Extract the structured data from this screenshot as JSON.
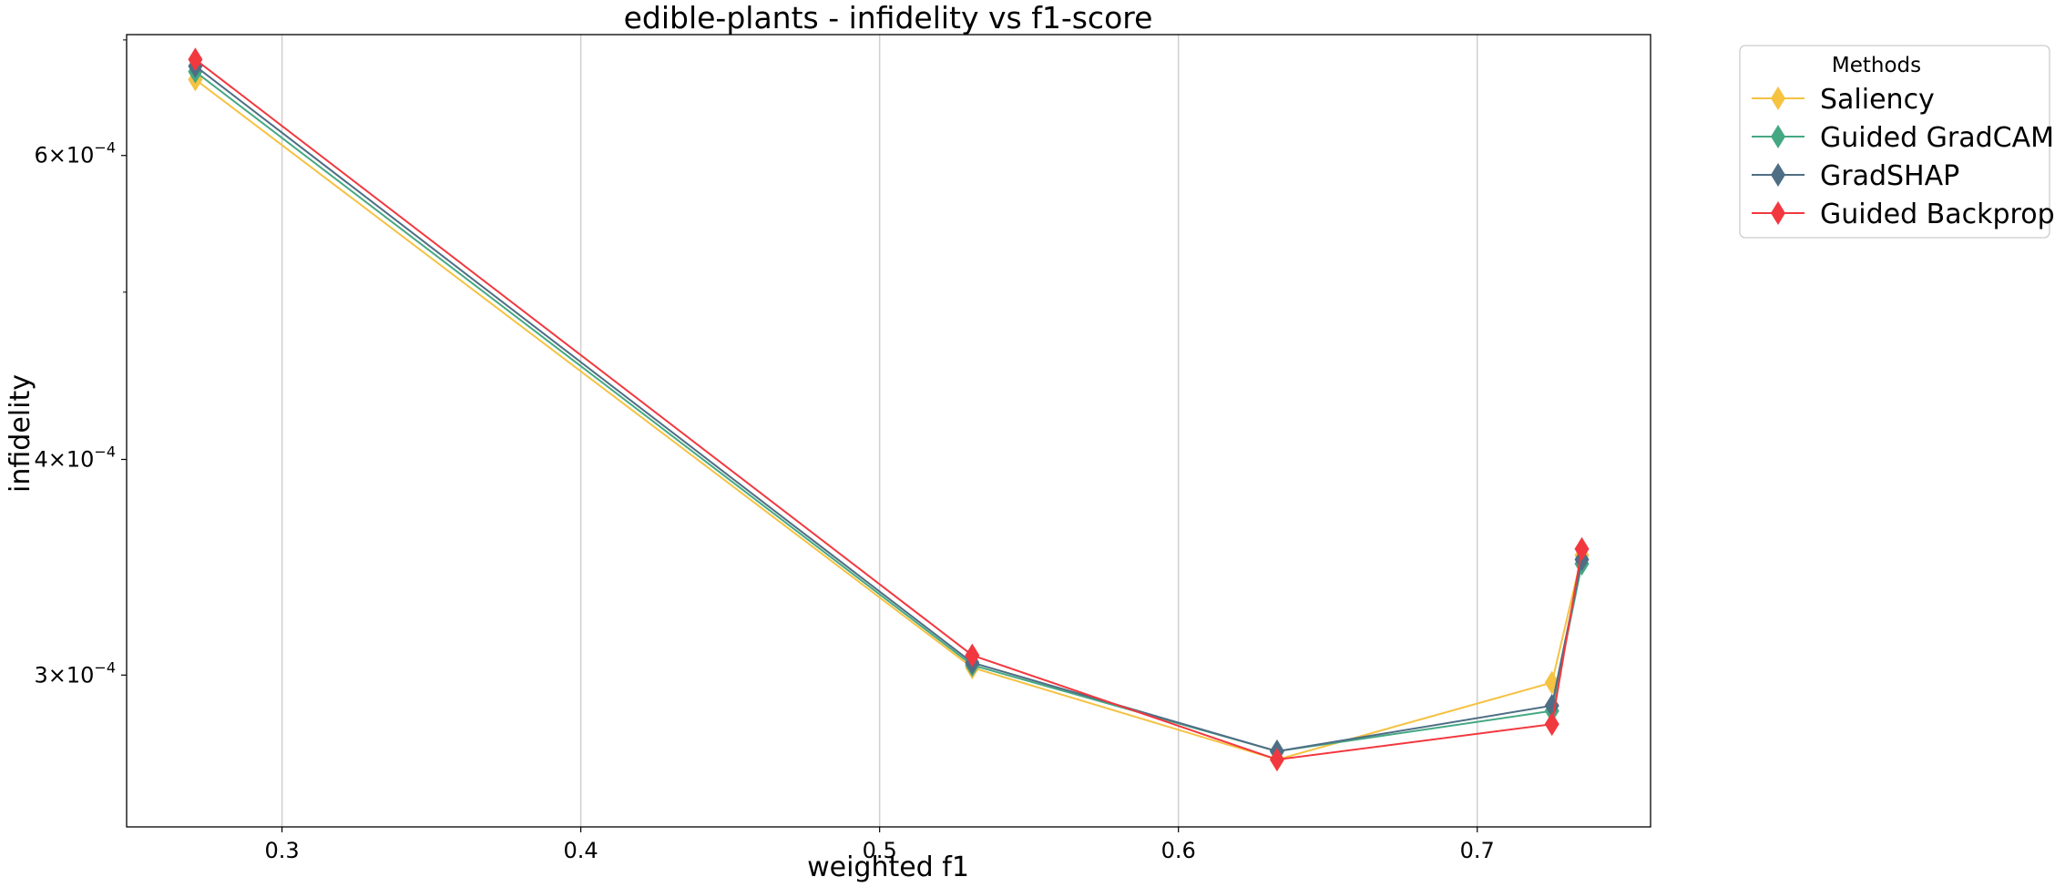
{
  "chart_data": {
    "type": "line",
    "title": "edible-plants - infidelity vs f1-score",
    "xlabel": "weighted f1",
    "ylabel": "infidelity",
    "xlim": [
      0.248,
      0.758
    ],
    "ylim": [
      0.000245,
      0.000705
    ],
    "yscale": "log",
    "grid": "x-major",
    "legend": {
      "title": "Methods",
      "position": "outside-top-right"
    },
    "x_ticks": [
      {
        "value": 0.3,
        "label": "0.3"
      },
      {
        "value": 0.4,
        "label": "0.4"
      },
      {
        "value": 0.5,
        "label": "0.5"
      },
      {
        "value": 0.6,
        "label": "0.6"
      },
      {
        "value": 0.7,
        "label": "0.7"
      }
    ],
    "y_ticks": [
      {
        "value": 0.0003,
        "mantissa": "3",
        "exponent": "−4"
      },
      {
        "value": 0.0004,
        "mantissa": "4",
        "exponent": "−4"
      },
      {
        "value": 0.0006,
        "mantissa": "6",
        "exponent": "−4"
      }
    ],
    "y_minor_ticks": [
      0.0005,
      0.0007
    ],
    "series": [
      {
        "name": "Saliency",
        "color": "#F5C242",
        "points": [
          [
            0.271,
            0.000664
          ],
          [
            0.531,
            0.000303
          ],
          [
            0.633,
            0.000268
          ],
          [
            0.725,
            0.000297
          ],
          [
            0.735,
            0.000352
          ]
        ]
      },
      {
        "name": "Guided GradCAM",
        "color": "#45A883",
        "points": [
          [
            0.271,
            0.000671
          ],
          [
            0.531,
            0.000304
          ],
          [
            0.633,
            0.000271
          ],
          [
            0.725,
            0.000286
          ],
          [
            0.735,
            0.000348
          ]
        ]
      },
      {
        "name": "GradSHAP",
        "color": "#4E6E85",
        "points": [
          [
            0.271,
            0.000676
          ],
          [
            0.531,
            0.000305
          ],
          [
            0.633,
            0.000271
          ],
          [
            0.725,
            0.000288
          ],
          [
            0.735,
            0.00035
          ]
        ]
      },
      {
        "name": "Guided Backprop",
        "color": "#F2383F",
        "points": [
          [
            0.271,
            0.000682
          ],
          [
            0.531,
            0.000308
          ],
          [
            0.633,
            0.000268
          ],
          [
            0.725,
            0.000281
          ],
          [
            0.735,
            0.000355
          ]
        ]
      }
    ]
  }
}
